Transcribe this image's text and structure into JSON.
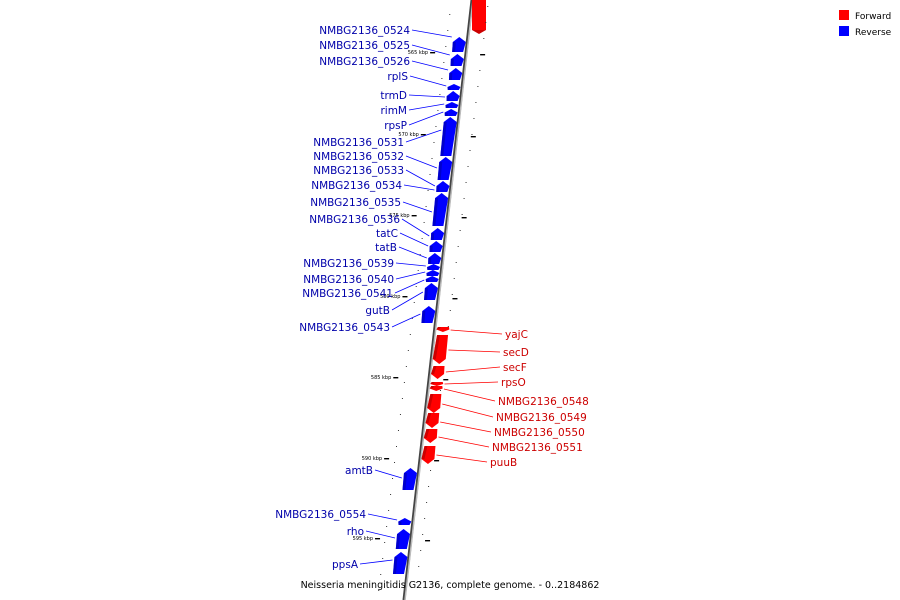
{
  "caption": "Neisseria meningitidis G2136, complete genome. - 0..2184862",
  "legend": [
    {
      "label": "Forward",
      "color": "#ff0000"
    },
    {
      "label": "Reverse",
      "color": "#0000ff"
    }
  ],
  "colors": {
    "forward": "#ff0000",
    "reverse": "#0000ff",
    "backbone": "#888888"
  },
  "kbp_markers": [
    "565 kbp",
    "570 kbp",
    "575 kbp",
    "580 kbp",
    "585 kbp",
    "590 kbp",
    "595 kbp"
  ],
  "reverse_genes": [
    "NMBG2136_0524",
    "NMBG2136_0525",
    "NMBG2136_0526",
    "rplS",
    "trmD",
    "rimM",
    "rpsP",
    "NMBG2136_0531",
    "NMBG2136_0532",
    "NMBG2136_0533",
    "NMBG2136_0534",
    "NMBG2136_0535",
    "NMBG2136_0536",
    "tatC",
    "tatB",
    "NMBG2136_0539",
    "NMBG2136_0540",
    "NMBG2136_0541",
    "gutB",
    "NMBG2136_0543",
    "amtB",
    "NMBG2136_0554",
    "rho",
    "ppsA"
  ],
  "forward_genes": [
    "yajC",
    "secD",
    "secF",
    "rpsO",
    "NMBG2136_0548",
    "NMBG2136_0549",
    "NMBG2136_0550",
    "NMBG2136_0551",
    "puuB"
  ]
}
